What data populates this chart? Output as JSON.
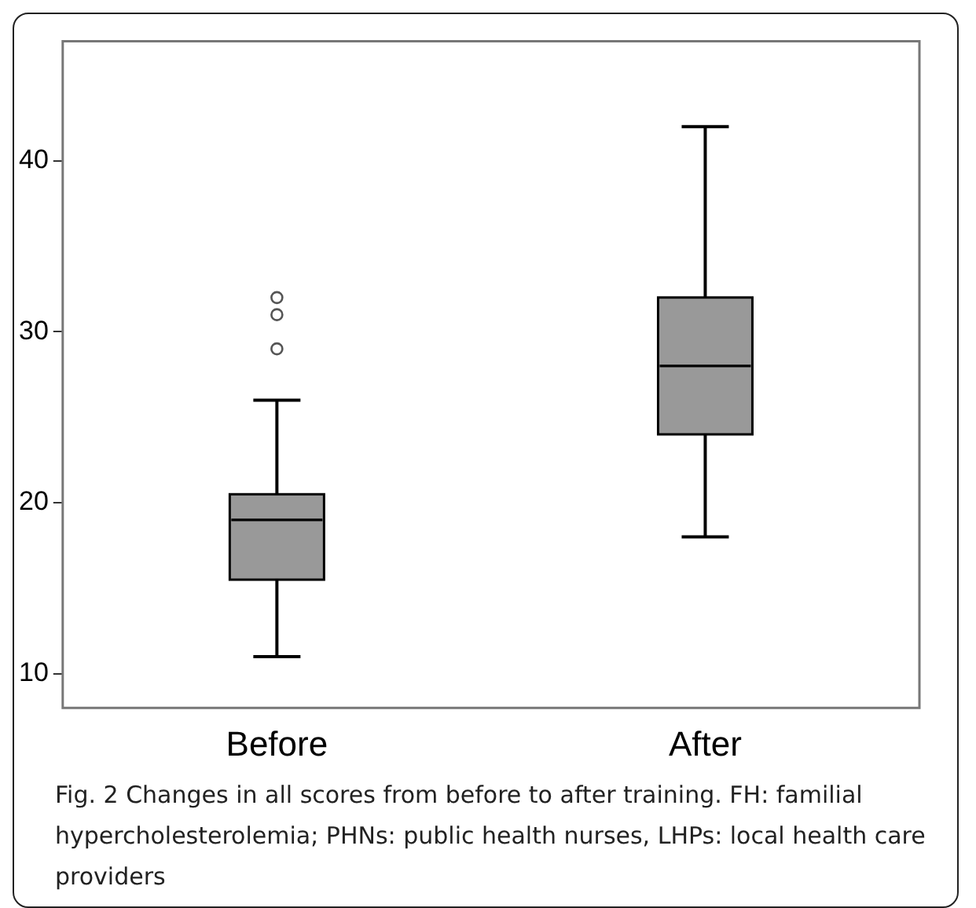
{
  "chart_data": {
    "type": "box",
    "categories": [
      "Before",
      "After"
    ],
    "color": "#999999",
    "boxes": [
      {
        "low": 11,
        "q1": 15.5,
        "median": 19,
        "q3": 20.5,
        "high": 26,
        "outliers": [
          29,
          31,
          32
        ]
      },
      {
        "low": 18,
        "q1": 24,
        "median": 28,
        "q3": 32,
        "high": 42
      }
    ],
    "ylim": [
      8,
      47
    ],
    "yticks": [
      10,
      20,
      30,
      40
    ],
    "grid": false,
    "legend": false,
    "annotations": [
      "Fig. 2 Changes in all scores from before to after training. FH: familial hypercholesterolemia; PHNs: public health nurses, LHPs: local health care providers"
    ]
  }
}
